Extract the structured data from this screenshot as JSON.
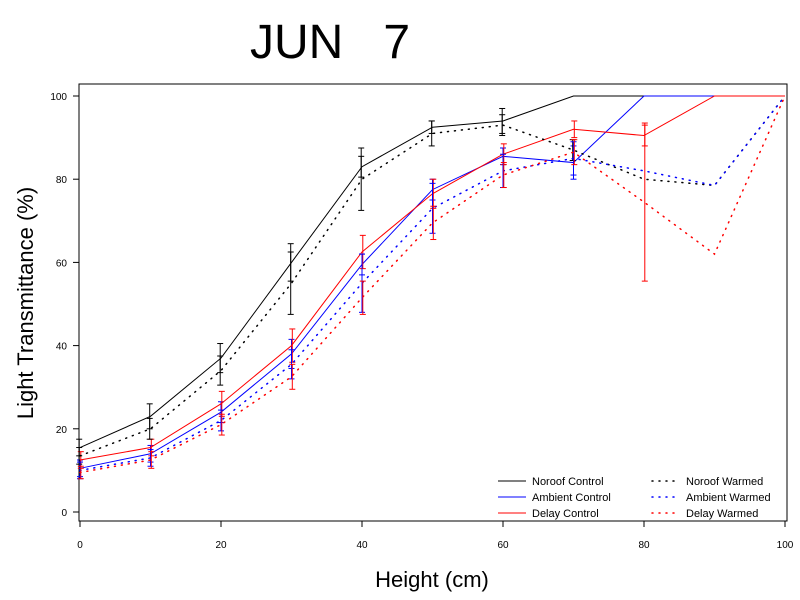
{
  "chart_data": {
    "type": "line",
    "title": "JUN   7",
    "xlabel": "Height (cm)",
    "ylabel": "Light Transmittance (%)",
    "xlim": [
      0,
      100
    ],
    "ylim": [
      0,
      100
    ],
    "xticks": [
      0,
      20,
      40,
      60,
      80,
      100
    ],
    "yticks": [
      0,
      20,
      40,
      60,
      80,
      100
    ],
    "grid": false,
    "legend_position": "bottom-right",
    "series": [
      {
        "name": "Noroof Control",
        "color": "#000000",
        "style": "solid",
        "x": [
          0,
          10,
          20,
          30,
          40,
          50,
          60,
          70,
          80,
          90,
          100
        ],
        "y": [
          15.5,
          23,
          37,
          60,
          83,
          92.5,
          94,
          100,
          100,
          100,
          100
        ],
        "err": [
          2,
          3,
          3.5,
          4.5,
          2.5,
          1.5,
          3,
          null,
          null,
          null,
          null
        ]
      },
      {
        "name": "Ambient Control",
        "color": "#0000ff",
        "style": "solid",
        "x": [
          0,
          10,
          20,
          30,
          40,
          50,
          60,
          70,
          80,
          90,
          100
        ],
        "y": [
          10.5,
          14,
          24,
          38,
          59.5,
          77.5,
          85.5,
          84,
          100,
          100,
          100
        ],
        "err": [
          2,
          2,
          2.5,
          3.5,
          2.5,
          2.5,
          2,
          4,
          null,
          null,
          null
        ]
      },
      {
        "name": "Delay Control",
        "color": "#ff0000",
        "style": "solid",
        "x": [
          0,
          10,
          20,
          30,
          40,
          50,
          60,
          70,
          80,
          90,
          100
        ],
        "y": [
          12.5,
          15.5,
          26,
          40,
          62.5,
          76.5,
          86,
          92,
          90.5,
          100,
          100
        ],
        "err": [
          2,
          2,
          3,
          4,
          4,
          3.5,
          2.5,
          2,
          2.5,
          null,
          null
        ]
      },
      {
        "name": "Noroof Warmed",
        "color": "#000000",
        "style": "dotted",
        "x": [
          0,
          10,
          20,
          30,
          40,
          50,
          60,
          70,
          80,
          90,
          100
        ],
        "y": [
          13.5,
          20,
          34,
          55,
          80,
          91,
          93,
          87,
          80,
          78.5,
          100
        ],
        "err": [
          2,
          2.5,
          3.5,
          7.5,
          7.5,
          3,
          2.5,
          2.5,
          null,
          null,
          null
        ]
      },
      {
        "name": "Ambient Warmed",
        "color": "#0000ff",
        "style": "dotted",
        "x": [
          0,
          10,
          20,
          30,
          40,
          50,
          60,
          70,
          80,
          90,
          100
        ],
        "y": [
          10,
          13,
          22,
          35.5,
          55,
          73,
          82,
          85,
          82,
          78.5,
          100
        ],
        "err": [
          2,
          2,
          2.5,
          3.5,
          7,
          6,
          4,
          4,
          null,
          null,
          null
        ]
      },
      {
        "name": "Delay Warmed",
        "color": "#ff0000",
        "style": "dotted",
        "x": [
          0,
          10,
          20,
          30,
          40,
          50,
          60,
          70,
          80,
          90,
          100
        ],
        "y": [
          9.5,
          12.5,
          21,
          32.5,
          51.5,
          69.5,
          81,
          86.5,
          74.5,
          62,
          100
        ],
        "err": [
          1.5,
          2,
          2.5,
          3,
          4,
          4,
          3,
          3,
          19,
          null,
          null
        ]
      }
    ]
  }
}
